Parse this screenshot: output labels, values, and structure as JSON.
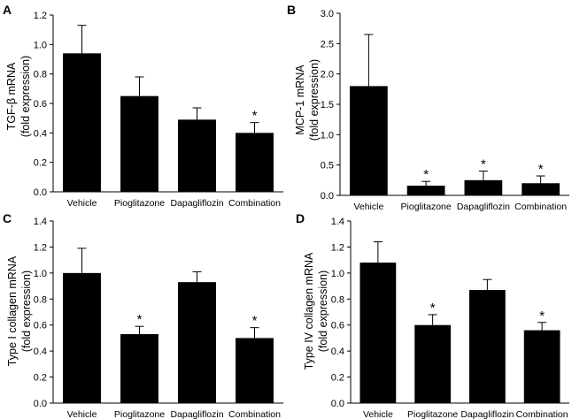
{
  "chart_data": [
    {
      "panel": "A",
      "type": "bar",
      "title": "",
      "ylabel_line1": "TGF-β mRNA",
      "ylabel_line2": "(fold expression)",
      "xlabel": "",
      "categories": [
        "Vehicle",
        "Pioglitazone",
        "Dapagliflozin",
        "Combination"
      ],
      "values": [
        0.94,
        0.65,
        0.49,
        0.4
      ],
      "errors": [
        0.19,
        0.13,
        0.08,
        0.07
      ],
      "significant": [
        false,
        false,
        false,
        true
      ],
      "significance_marker": "*",
      "ylim": [
        0,
        1.2
      ],
      "yticks": [
        "0.0",
        "0.2",
        "0.4",
        "0.6",
        "0.8",
        "1.0",
        "1.2"
      ],
      "grid": false
    },
    {
      "panel": "B",
      "type": "bar",
      "title": "",
      "ylabel_line1": "MCP-1 mRNA",
      "ylabel_line2": "(fold expression)",
      "xlabel": "",
      "categories": [
        "Vehicle",
        "Pioglitazone",
        "Dapagliflozin",
        "Combination"
      ],
      "values": [
        1.8,
        0.16,
        0.25,
        0.2
      ],
      "errors": [
        0.85,
        0.07,
        0.15,
        0.12
      ],
      "significant": [
        false,
        true,
        true,
        true
      ],
      "significance_marker": "*",
      "ylim": [
        0,
        3.0
      ],
      "yticks": [
        "0.0",
        "0.5",
        "1.0",
        "1.5",
        "2.0",
        "2.5",
        "3.0"
      ],
      "grid": false
    },
    {
      "panel": "C",
      "type": "bar",
      "title": "",
      "ylabel_line1": "Type I collagen mRNA",
      "ylabel_line2": "(fold expression)",
      "xlabel": "",
      "categories": [
        "Vehicle",
        "Pioglitazone",
        "Dapagliflozin",
        "Combination"
      ],
      "values": [
        1.0,
        0.53,
        0.93,
        0.5
      ],
      "errors": [
        0.19,
        0.06,
        0.08,
        0.08
      ],
      "significant": [
        false,
        true,
        false,
        true
      ],
      "significance_marker": "*",
      "ylim": [
        0,
        1.4
      ],
      "yticks": [
        "0.0",
        "0.2",
        "0.4",
        "0.6",
        "0.8",
        "1.0",
        "1.2",
        "1.4"
      ],
      "grid": false
    },
    {
      "panel": "D",
      "type": "bar",
      "title": "",
      "ylabel_line1": "Type IV collagen mRNA",
      "ylabel_line2": "(fold expression)",
      "xlabel": "",
      "categories": [
        "Vehicle",
        "Pioglitazone",
        "Dapagliflozin",
        "Combination"
      ],
      "values": [
        1.08,
        0.6,
        0.87,
        0.56
      ],
      "errors": [
        0.16,
        0.08,
        0.08,
        0.06
      ],
      "significant": [
        false,
        true,
        false,
        true
      ],
      "significance_marker": "*",
      "ylim": [
        0,
        1.4
      ],
      "yticks": [
        "0.0",
        "0.2",
        "0.4",
        "0.6",
        "0.8",
        "1.0",
        "1.2",
        "1.4"
      ],
      "grid": false
    }
  ]
}
